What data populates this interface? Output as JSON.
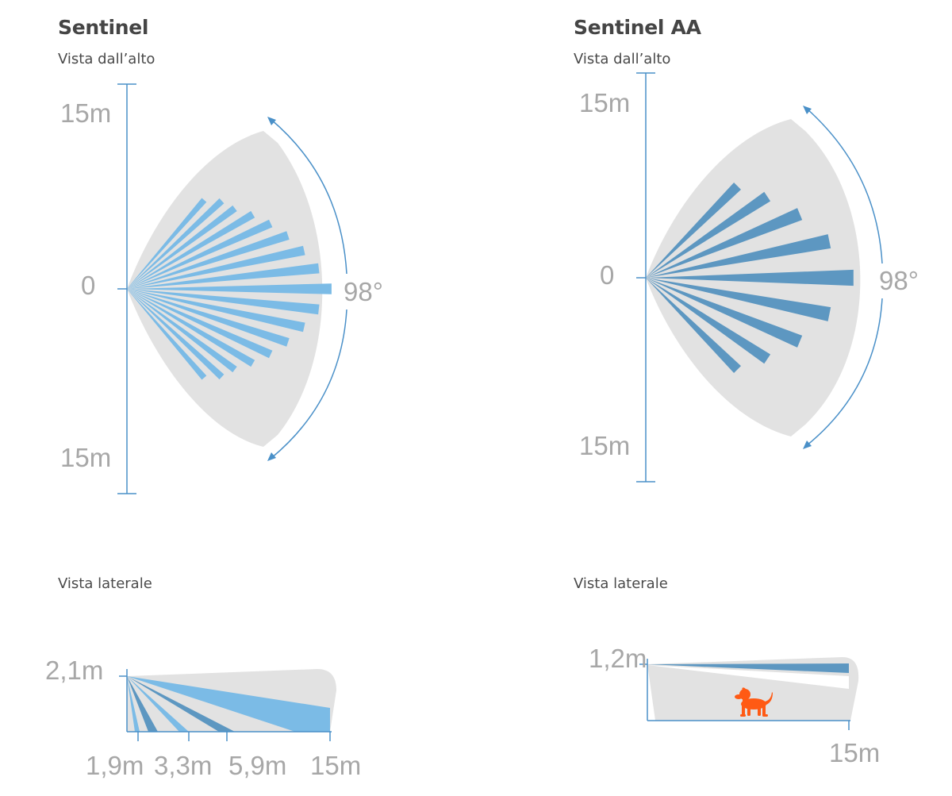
{
  "colors": {
    "light_blue": "#7bbbe6",
    "dark_blue": "#5d97c1",
    "zone_gray": "#e2e2e2",
    "axis_blue": "#4a90c8",
    "label_gray": "#a7a7a7",
    "dog_orange": "#ff5a14"
  },
  "left": {
    "title": "Sentinel",
    "top_view": {
      "label": "Vista dall’alto",
      "y_top": "15m",
      "y_mid": "0",
      "y_bottom": "15m",
      "angle": "98°"
    },
    "side_view": {
      "label": "Vista laterale",
      "height": "2,1m",
      "ticks": [
        "1,9m",
        "3,3m",
        "5,9m",
        "15m"
      ]
    }
  },
  "right": {
    "title": "Sentinel AA",
    "top_view": {
      "label": "Vista dall’alto",
      "y_top": "15m",
      "y_mid": "0",
      "y_bottom": "15m",
      "angle": "98°"
    },
    "side_view": {
      "label": "Vista laterale",
      "height": "1,2m",
      "distance": "15m",
      "icon": "dog-icon"
    }
  }
}
